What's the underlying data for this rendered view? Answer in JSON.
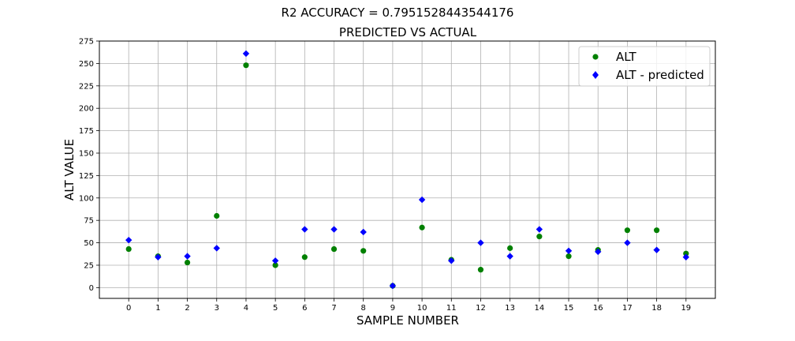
{
  "chart_data": {
    "type": "scatter",
    "suptitle": "R2 ACCURACY = 0.7951528443544176",
    "title": "PREDICTED VS ACTUAL",
    "xlabel": "SAMPLE NUMBER",
    "ylabel": "ALT  VALUE",
    "x": [
      0,
      1,
      2,
      3,
      4,
      5,
      6,
      7,
      8,
      9,
      10,
      11,
      12,
      13,
      14,
      15,
      16,
      17,
      18,
      19
    ],
    "xlim": [
      -1,
      20
    ],
    "ylim": [
      -12,
      275
    ],
    "yticks": [
      0,
      25,
      50,
      75,
      100,
      125,
      150,
      175,
      200,
      225,
      250,
      275
    ],
    "grid": true,
    "legend_position": "upper right",
    "series": [
      {
        "name": "ALT",
        "marker": "circle",
        "color": "#008000",
        "values": [
          43,
          35,
          28,
          80,
          248,
          25,
          34,
          43,
          41,
          2,
          67,
          31,
          20,
          44,
          57,
          35,
          42,
          64,
          64,
          38
        ]
      },
      {
        "name": "ALT - predicted",
        "marker": "diamond",
        "color": "#0000ff",
        "values": [
          53,
          34,
          35,
          44,
          261,
          30,
          65,
          65,
          62,
          2,
          98,
          30,
          50,
          35,
          65,
          41,
          40,
          50,
          42,
          34
        ]
      }
    ]
  }
}
